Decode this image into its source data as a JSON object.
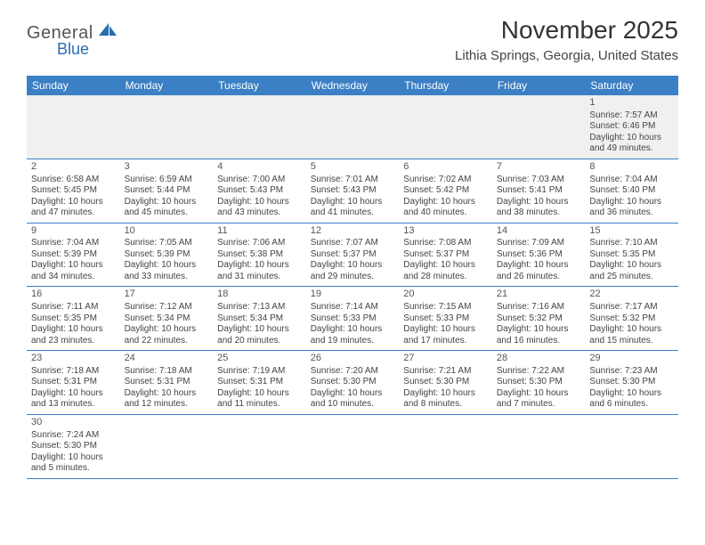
{
  "logo": {
    "text1": "General",
    "text2": "Blue"
  },
  "header": {
    "month_title": "November 2025",
    "location": "Lithia Springs, Georgia, United States"
  },
  "colors": {
    "header_bar": "#3b7fc4",
    "row_divider": "#3b7fc4",
    "first_week_bg": "#f0f0f0",
    "logo_blue": "#2a6db0"
  },
  "weekdays": [
    "Sunday",
    "Monday",
    "Tuesday",
    "Wednesday",
    "Thursday",
    "Friday",
    "Saturday"
  ],
  "weeks": [
    [
      null,
      null,
      null,
      null,
      null,
      null,
      {
        "n": "1",
        "sr": "Sunrise: 7:57 AM",
        "ss": "Sunset: 6:46 PM",
        "d1": "Daylight: 10 hours",
        "d2": "and 49 minutes."
      }
    ],
    [
      {
        "n": "2",
        "sr": "Sunrise: 6:58 AM",
        "ss": "Sunset: 5:45 PM",
        "d1": "Daylight: 10 hours",
        "d2": "and 47 minutes."
      },
      {
        "n": "3",
        "sr": "Sunrise: 6:59 AM",
        "ss": "Sunset: 5:44 PM",
        "d1": "Daylight: 10 hours",
        "d2": "and 45 minutes."
      },
      {
        "n": "4",
        "sr": "Sunrise: 7:00 AM",
        "ss": "Sunset: 5:43 PM",
        "d1": "Daylight: 10 hours",
        "d2": "and 43 minutes."
      },
      {
        "n": "5",
        "sr": "Sunrise: 7:01 AM",
        "ss": "Sunset: 5:43 PM",
        "d1": "Daylight: 10 hours",
        "d2": "and 41 minutes."
      },
      {
        "n": "6",
        "sr": "Sunrise: 7:02 AM",
        "ss": "Sunset: 5:42 PM",
        "d1": "Daylight: 10 hours",
        "d2": "and 40 minutes."
      },
      {
        "n": "7",
        "sr": "Sunrise: 7:03 AM",
        "ss": "Sunset: 5:41 PM",
        "d1": "Daylight: 10 hours",
        "d2": "and 38 minutes."
      },
      {
        "n": "8",
        "sr": "Sunrise: 7:04 AM",
        "ss": "Sunset: 5:40 PM",
        "d1": "Daylight: 10 hours",
        "d2": "and 36 minutes."
      }
    ],
    [
      {
        "n": "9",
        "sr": "Sunrise: 7:04 AM",
        "ss": "Sunset: 5:39 PM",
        "d1": "Daylight: 10 hours",
        "d2": "and 34 minutes."
      },
      {
        "n": "10",
        "sr": "Sunrise: 7:05 AM",
        "ss": "Sunset: 5:39 PM",
        "d1": "Daylight: 10 hours",
        "d2": "and 33 minutes."
      },
      {
        "n": "11",
        "sr": "Sunrise: 7:06 AM",
        "ss": "Sunset: 5:38 PM",
        "d1": "Daylight: 10 hours",
        "d2": "and 31 minutes."
      },
      {
        "n": "12",
        "sr": "Sunrise: 7:07 AM",
        "ss": "Sunset: 5:37 PM",
        "d1": "Daylight: 10 hours",
        "d2": "and 29 minutes."
      },
      {
        "n": "13",
        "sr": "Sunrise: 7:08 AM",
        "ss": "Sunset: 5:37 PM",
        "d1": "Daylight: 10 hours",
        "d2": "and 28 minutes."
      },
      {
        "n": "14",
        "sr": "Sunrise: 7:09 AM",
        "ss": "Sunset: 5:36 PM",
        "d1": "Daylight: 10 hours",
        "d2": "and 26 minutes."
      },
      {
        "n": "15",
        "sr": "Sunrise: 7:10 AM",
        "ss": "Sunset: 5:35 PM",
        "d1": "Daylight: 10 hours",
        "d2": "and 25 minutes."
      }
    ],
    [
      {
        "n": "16",
        "sr": "Sunrise: 7:11 AM",
        "ss": "Sunset: 5:35 PM",
        "d1": "Daylight: 10 hours",
        "d2": "and 23 minutes."
      },
      {
        "n": "17",
        "sr": "Sunrise: 7:12 AM",
        "ss": "Sunset: 5:34 PM",
        "d1": "Daylight: 10 hours",
        "d2": "and 22 minutes."
      },
      {
        "n": "18",
        "sr": "Sunrise: 7:13 AM",
        "ss": "Sunset: 5:34 PM",
        "d1": "Daylight: 10 hours",
        "d2": "and 20 minutes."
      },
      {
        "n": "19",
        "sr": "Sunrise: 7:14 AM",
        "ss": "Sunset: 5:33 PM",
        "d1": "Daylight: 10 hours",
        "d2": "and 19 minutes."
      },
      {
        "n": "20",
        "sr": "Sunrise: 7:15 AM",
        "ss": "Sunset: 5:33 PM",
        "d1": "Daylight: 10 hours",
        "d2": "and 17 minutes."
      },
      {
        "n": "21",
        "sr": "Sunrise: 7:16 AM",
        "ss": "Sunset: 5:32 PM",
        "d1": "Daylight: 10 hours",
        "d2": "and 16 minutes."
      },
      {
        "n": "22",
        "sr": "Sunrise: 7:17 AM",
        "ss": "Sunset: 5:32 PM",
        "d1": "Daylight: 10 hours",
        "d2": "and 15 minutes."
      }
    ],
    [
      {
        "n": "23",
        "sr": "Sunrise: 7:18 AM",
        "ss": "Sunset: 5:31 PM",
        "d1": "Daylight: 10 hours",
        "d2": "and 13 minutes."
      },
      {
        "n": "24",
        "sr": "Sunrise: 7:18 AM",
        "ss": "Sunset: 5:31 PM",
        "d1": "Daylight: 10 hours",
        "d2": "and 12 minutes."
      },
      {
        "n": "25",
        "sr": "Sunrise: 7:19 AM",
        "ss": "Sunset: 5:31 PM",
        "d1": "Daylight: 10 hours",
        "d2": "and 11 minutes."
      },
      {
        "n": "26",
        "sr": "Sunrise: 7:20 AM",
        "ss": "Sunset: 5:30 PM",
        "d1": "Daylight: 10 hours",
        "d2": "and 10 minutes."
      },
      {
        "n": "27",
        "sr": "Sunrise: 7:21 AM",
        "ss": "Sunset: 5:30 PM",
        "d1": "Daylight: 10 hours",
        "d2": "and 8 minutes."
      },
      {
        "n": "28",
        "sr": "Sunrise: 7:22 AM",
        "ss": "Sunset: 5:30 PM",
        "d1": "Daylight: 10 hours",
        "d2": "and 7 minutes."
      },
      {
        "n": "29",
        "sr": "Sunrise: 7:23 AM",
        "ss": "Sunset: 5:30 PM",
        "d1": "Daylight: 10 hours",
        "d2": "and 6 minutes."
      }
    ],
    [
      {
        "n": "30",
        "sr": "Sunrise: 7:24 AM",
        "ss": "Sunset: 5:30 PM",
        "d1": "Daylight: 10 hours",
        "d2": "and 5 minutes."
      },
      null,
      null,
      null,
      null,
      null,
      null
    ]
  ]
}
